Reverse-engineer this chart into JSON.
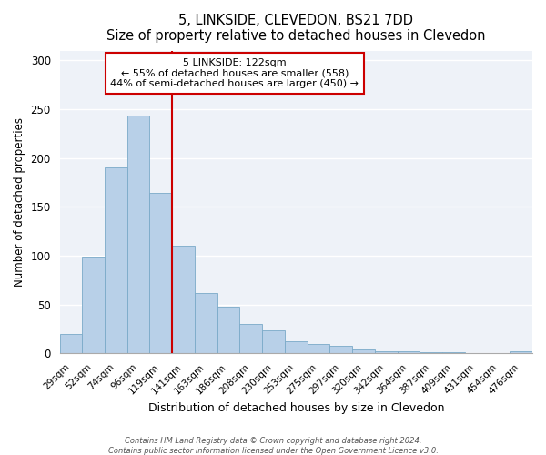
{
  "title": "5, LINKSIDE, CLEVEDON, BS21 7DD",
  "subtitle": "Size of property relative to detached houses in Clevedon",
  "xlabel": "Distribution of detached houses by size in Clevedon",
  "ylabel": "Number of detached properties",
  "bar_labels": [
    "29sqm",
    "52sqm",
    "74sqm",
    "96sqm",
    "119sqm",
    "141sqm",
    "163sqm",
    "186sqm",
    "208sqm",
    "230sqm",
    "253sqm",
    "275sqm",
    "297sqm",
    "320sqm",
    "342sqm",
    "364sqm",
    "387sqm",
    "409sqm",
    "431sqm",
    "454sqm",
    "476sqm"
  ],
  "bar_values": [
    20,
    99,
    190,
    243,
    164,
    110,
    62,
    48,
    30,
    24,
    13,
    10,
    8,
    4,
    2,
    2,
    1,
    1,
    0,
    0,
    2
  ],
  "bar_color": "#b8d0e8",
  "bar_edge_color": "#7aaac8",
  "property_line_index": 4,
  "property_line_color": "#cc0000",
  "annotation_title": "5 LINKSIDE: 122sqm",
  "annotation_line1": "← 55% of detached houses are smaller (558)",
  "annotation_line2": "44% of semi-detached houses are larger (450) →",
  "annotation_box_color": "#ffffff",
  "annotation_box_edge": "#cc0000",
  "ylim": [
    0,
    310
  ],
  "yticks": [
    0,
    50,
    100,
    150,
    200,
    250,
    300
  ],
  "bg_color": "#eef2f8",
  "grid_color": "#ffffff",
  "footnote1": "Contains HM Land Registry data © Crown copyright and database right 2024.",
  "footnote2": "Contains public sector information licensed under the Open Government Licence v3.0."
}
